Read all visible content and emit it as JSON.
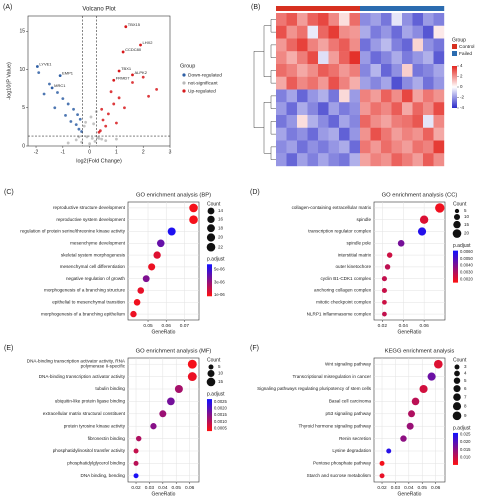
{
  "chart_data": [
    {
      "type": "volcano",
      "panel_label": "(A)",
      "title": "Volcano Plot",
      "xlabel": "log2(Fold Change)",
      "ylabel": "-log10(P Value)",
      "xlim": [
        -2.3,
        3
      ],
      "xticks": [
        -2,
        -1,
        0,
        1,
        2,
        3
      ],
      "ylim": [
        0,
        17
      ],
      "yticks": [
        0,
        5,
        10,
        15
      ],
      "vlines": [
        -0.26,
        0.26
      ],
      "hline": 1.3,
      "legend_title": "Group",
      "series": [
        {
          "name": "Down-regulated",
          "color": "#2f5fa5",
          "x": [
            -1.9,
            -1.5,
            -1.2,
            -1.0,
            -0.8,
            -0.6,
            -0.45,
            -0.35,
            -1.3,
            -0.7,
            -0.5,
            -0.9,
            -0.4,
            -0.3,
            -1.7
          ],
          "y": [
            9.6,
            8.1,
            7.0,
            6.2,
            5.5,
            4.8,
            4.1,
            3.5,
            5.0,
            3.2,
            2.8,
            4.0,
            2.2,
            1.9,
            6.8
          ]
        },
        {
          "name": "not-significant",
          "color": "#b8b8b8",
          "x": [
            -0.5,
            -0.3,
            -0.1,
            0.0,
            0.1,
            0.2,
            0.3,
            0.45,
            -0.2,
            0.05,
            0.15,
            -0.4,
            0.6,
            -0.8,
            1.0,
            0.25,
            -0.15,
            0.35
          ],
          "y": [
            0.8,
            0.5,
            1.2,
            0.3,
            1.0,
            0.6,
            1.1,
            0.9,
            2.6,
            3.8,
            2.9,
            1.2,
            0.7,
            0.4,
            0.9,
            4.5,
            3.1,
            1.0
          ]
        },
        {
          "name": "Up-regulated",
          "color": "#d7191c",
          "x": [
            0.4,
            0.5,
            0.7,
            0.9,
            1.1,
            1.3,
            0.6,
            0.8,
            1.6,
            2.0,
            2.2,
            2.5,
            0.45,
            1.0,
            0.35
          ],
          "y": [
            2.0,
            3.4,
            4.2,
            5.5,
            6.3,
            5.0,
            2.6,
            7.1,
            8.3,
            9.0,
            6.5,
            7.4,
            4.8,
            3.0,
            1.8
          ]
        }
      ],
      "annotations": [
        {
          "label": "TBX15",
          "x": 1.35,
          "y": 15.6
        },
        {
          "label": "LHX2",
          "x": 1.9,
          "y": 13.2
        },
        {
          "label": "CCDC80",
          "x": 1.25,
          "y": 12.3
        },
        {
          "label": "TBX1",
          "x": 1.1,
          "y": 9.8
        },
        {
          "label": "ALPK2",
          "x": 1.6,
          "y": 9.3
        },
        {
          "label": "FRMD7",
          "x": 0.9,
          "y": 8.6
        },
        {
          "label": "LYVE1",
          "x": -1.95,
          "y": 10.4
        },
        {
          "label": "EMP1",
          "x": -1.1,
          "y": 9.2
        },
        {
          "label": "MRC1",
          "x": -1.4,
          "y": 7.6
        }
      ]
    },
    {
      "type": "heatmap",
      "panel_label": "(B)",
      "legend_title": "Group",
      "groups": [
        {
          "name": "Control",
          "color": "#d7301f"
        },
        {
          "name": "Failed",
          "color": "#2b6cb0"
        }
      ],
      "column_groups": [
        0,
        0,
        0,
        0,
        0,
        0,
        0,
        0,
        1,
        1,
        1,
        1,
        1,
        1,
        1,
        1
      ],
      "zlim": [
        -4,
        4
      ],
      "colorbar_ticks": [
        4,
        2,
        0,
        -2,
        -4
      ],
      "colors": [
        "#2c2cc8",
        "#ffffff",
        "#e3261f"
      ],
      "matrix": [
        [
          2.5,
          3.1,
          1.8,
          2.9,
          3.4,
          2.2,
          0.6,
          2.7,
          -2.2,
          -1.8,
          -2.6,
          -0.5,
          -2.1,
          -3.0,
          -1.9,
          -2.4
        ],
        [
          3.2,
          2.0,
          2.6,
          -0.4,
          2.8,
          3.6,
          2.1,
          1.9,
          -1.6,
          -2.5,
          -2.0,
          -2.8,
          -1.7,
          -2.2,
          -3.2,
          0.4
        ],
        [
          1.9,
          2.8,
          3.5,
          2.3,
          1.7,
          2.5,
          3.0,
          2.1,
          -2.7,
          -1.9,
          -1.3,
          -2.4,
          -2.9,
          0.8,
          -2.1,
          -2.6
        ],
        [
          2.2,
          1.5,
          2.4,
          3.3,
          -0.6,
          1.8,
          2.9,
          3.8,
          -1.9,
          -2.8,
          -2.3,
          -1.6,
          -2.5,
          -2.0,
          -1.5,
          -3.1
        ],
        [
          2.7,
          2.3,
          1.6,
          2.1,
          3.0,
          2.6,
          1.9,
          2.4,
          -2.3,
          -1.4,
          -2.9,
          -2.1,
          0.9,
          -2.6,
          -2.3,
          -1.7
        ],
        [
          1.6,
          3.0,
          2.2,
          2.6,
          1.9,
          3.2,
          2.3,
          1.5,
          -1.8,
          -2.3,
          -1.7,
          -3.3,
          -2.2,
          -1.6,
          -2.7,
          -2.0
        ],
        [
          -2.4,
          -1.7,
          -2.9,
          -2.0,
          -1.5,
          -2.6,
          0.7,
          -1.9,
          2.3,
          1.8,
          2.9,
          2.1,
          3.4,
          1.7,
          2.5,
          2.0
        ],
        [
          -1.9,
          -2.8,
          -1.6,
          -2.3,
          -3.1,
          -1.8,
          -2.5,
          -2.1,
          1.9,
          2.6,
          2.2,
          3.0,
          1.6,
          2.8,
          2.1,
          3.3
        ],
        [
          -2.6,
          -2.0,
          0.6,
          -1.5,
          -2.2,
          -2.9,
          -1.7,
          -2.3,
          2.8,
          2.1,
          1.7,
          2.4,
          2.6,
          3.1,
          -0.5,
          2.2
        ],
        [
          -1.7,
          -2.5,
          -2.1,
          -2.8,
          -1.9,
          -1.6,
          -3.0,
          -2.0,
          2.0,
          3.2,
          2.5,
          1.8,
          2.3,
          2.0,
          2.9,
          1.6
        ],
        [
          -2.2,
          -1.8,
          -2.7,
          -2.1,
          -2.5,
          -2.0,
          -1.6,
          -2.8,
          2.5,
          1.9,
          2.7,
          2.2,
          1.8,
          2.6,
          2.3,
          3.6
        ],
        [
          -2.0,
          -2.9,
          -1.8,
          -2.4,
          -1.7,
          -2.3,
          -2.6,
          -1.5,
          1.7,
          2.3,
          2.0,
          2.9,
          2.4,
          1.8,
          3.0,
          2.1
        ]
      ]
    },
    {
      "type": "dot",
      "panel_label": "(C)",
      "title": "GO enrichment analysis (BP)",
      "xlabel": "GeneRatio",
      "grid": true,
      "categories": [
        "reproductive structure development",
        "reproductive system development",
        "regulation of protein serine/threonine kinase activity",
        "mesenchyme development",
        "skeletal system morphogenesis",
        "mesenchymal cell differentiation",
        "negative regulation of growth",
        "morphogenesis of a branching structure",
        "epithelial to mesenchymal transition",
        "morphogenesis of a branching epithelium"
      ],
      "values": [
        0.075,
        0.075,
        0.063,
        0.057,
        0.055,
        0.052,
        0.049,
        0.046,
        0.044,
        0.042
      ],
      "sizes": [
        22,
        22,
        19,
        17,
        16,
        15,
        14,
        13,
        13,
        12
      ],
      "p_adjust": [
        1e-06,
        1e-06,
        5.5e-06,
        4e-06,
        1.5e-06,
        1.2e-06,
        3.5e-06,
        1.3e-06,
        1.1e-06,
        1.2e-06
      ],
      "xlim": [
        0.039,
        0.078
      ],
      "xticks": [
        0.05,
        0.06,
        0.07
      ],
      "size_legend": {
        "title": "Count",
        "values": [
          14,
          16,
          18,
          20,
          22
        ]
      },
      "color_legend": {
        "title": "p.adjust",
        "lim": [
          8e-07,
          5.8e-06
        ],
        "colors": [
          "#ff1010",
          "#1010ff"
        ],
        "ticks": [
          {
            "value": 5e-06,
            "label": "5e-06"
          },
          {
            "value": 3e-06,
            "label": "3e-06"
          },
          {
            "value": 1e-06,
            "label": "1e-06"
          }
        ]
      }
    },
    {
      "type": "dot",
      "panel_label": "(D)",
      "title": "GO enrichment analysis (CC)",
      "xlabel": "GeneRatio",
      "grid": true,
      "categories": [
        "collagen-containing extracellular matrix",
        "spindle",
        "transcription regulator complex",
        "spindle pole",
        "interstitial matrix",
        "outer kinetochore",
        "cyclin B1-CDK1 complex",
        "anchoring collagen complex",
        "mitotic checkpoint complex",
        "NLRP1 inflammasome complex"
      ],
      "values": [
        0.075,
        0.06,
        0.058,
        0.038,
        0.027,
        0.025,
        0.022,
        0.022,
        0.022,
        0.022
      ],
      "sizes": [
        24,
        19,
        18,
        12,
        8,
        8,
        7,
        7,
        6,
        6
      ],
      "p_adjust": [
        0.0018,
        0.0022,
        0.0058,
        0.0042,
        0.0025,
        0.0028,
        0.0027,
        0.0026,
        0.0025,
        0.0027
      ],
      "xlim": [
        0.012,
        0.08
      ],
      "xticks": [
        0.02,
        0.04,
        0.06
      ],
      "size_legend": {
        "title": "Count",
        "values": [
          5,
          10,
          15,
          20
        ]
      },
      "color_legend": {
        "title": "p.adjust",
        "lim": [
          0.0015,
          0.0062
        ],
        "colors": [
          "#ff1010",
          "#1010ff"
        ],
        "ticks": [
          {
            "value": 0.006,
            "label": "0.0060"
          },
          {
            "value": 0.005,
            "label": "0.0050"
          },
          {
            "value": 0.004,
            "label": "0.0040"
          },
          {
            "value": 0.003,
            "label": "0.0030"
          },
          {
            "value": 0.002,
            "label": "0.0020"
          }
        ]
      }
    },
    {
      "type": "dot",
      "panel_label": "(E)",
      "title": "GO enrichment analysis (MF)",
      "xlabel": "GeneRatio",
      "grid": true,
      "categories": [
        "DNA-binding transcription activator activity, RNA polymerase II-specific",
        "DNA-binding transcription activator activity",
        "tubulin binding",
        "ubiquitin-like protein ligase binding",
        "extracellular matrix structural constituent",
        "protein tyrosine kinase activity",
        "fibronectin binding",
        "phosphatidylinositol transfer activity",
        "phosphatidylglycerol binding",
        "DNA binding, bending"
      ],
      "values": [
        0.062,
        0.062,
        0.052,
        0.046,
        0.04,
        0.033,
        0.022,
        0.02,
        0.02,
        0.02
      ],
      "sizes": [
        16,
        16,
        13,
        12,
        10,
        8,
        6,
        5,
        5,
        5
      ],
      "p_adjust": [
        0.0004,
        0.0005,
        0.0012,
        0.0017,
        0.0013,
        0.0015,
        0.0011,
        0.0009,
        0.001,
        0.0026
      ],
      "xlim": [
        0.014,
        0.067
      ],
      "xticks": [
        0.02,
        0.03,
        0.04,
        0.05,
        0.06
      ],
      "size_legend": {
        "title": "Count",
        "values": [
          5,
          10,
          15
        ]
      },
      "color_legend": {
        "title": "p.adjust",
        "lim": [
          0.0003,
          0.0027
        ],
        "colors": [
          "#ff1010",
          "#1010ff"
        ],
        "ticks": [
          {
            "value": 0.0025,
            "label": "0.0025"
          },
          {
            "value": 0.002,
            "label": "0.0020"
          },
          {
            "value": 0.0015,
            "label": "0.0015"
          },
          {
            "value": 0.001,
            "label": "0.0010"
          },
          {
            "value": 0.0005,
            "label": "0.0005"
          }
        ]
      }
    },
    {
      "type": "dot",
      "panel_label": "(F)",
      "title": "KEGG enrichment analysis",
      "xlabel": "GeneRatio",
      "grid": true,
      "categories": [
        "Wnt signaling pathway",
        "Transcriptional misregulation in cancer",
        "Signaling pathways regulating pluripotency of stem cells",
        "Basal cell carcinoma",
        "p53 signaling pathway",
        "Thyroid hormone signaling pathway",
        "Renin secretion",
        "Lysine degradation",
        "Pentose phosphate pathway",
        "Starch and sucrose metabolism"
      ],
      "values": [
        0.062,
        0.057,
        0.051,
        0.045,
        0.042,
        0.041,
        0.036,
        0.025,
        0.02,
        0.02
      ],
      "sizes": [
        9,
        8,
        8,
        7,
        6,
        6,
        5,
        3,
        3,
        3
      ],
      "p_adjust": [
        0.008,
        0.018,
        0.009,
        0.011,
        0.012,
        0.014,
        0.015,
        0.024,
        0.006,
        0.007
      ],
      "xlim": [
        0.014,
        0.067
      ],
      "xticks": [
        0.02,
        0.03,
        0.04,
        0.05,
        0.06
      ],
      "size_legend": {
        "title": "Count",
        "values": [
          3,
          4,
          5,
          6,
          7,
          8,
          9
        ]
      },
      "color_legend": {
        "title": "p.adjust",
        "lim": [
          0.005,
          0.026
        ],
        "colors": [
          "#ff1010",
          "#1010ff"
        ],
        "ticks": [
          {
            "value": 0.025,
            "label": "0.025"
          },
          {
            "value": 0.02,
            "label": "0.020"
          },
          {
            "value": 0.015,
            "label": "0.015"
          },
          {
            "value": 0.01,
            "label": "0.010"
          }
        ]
      }
    }
  ]
}
